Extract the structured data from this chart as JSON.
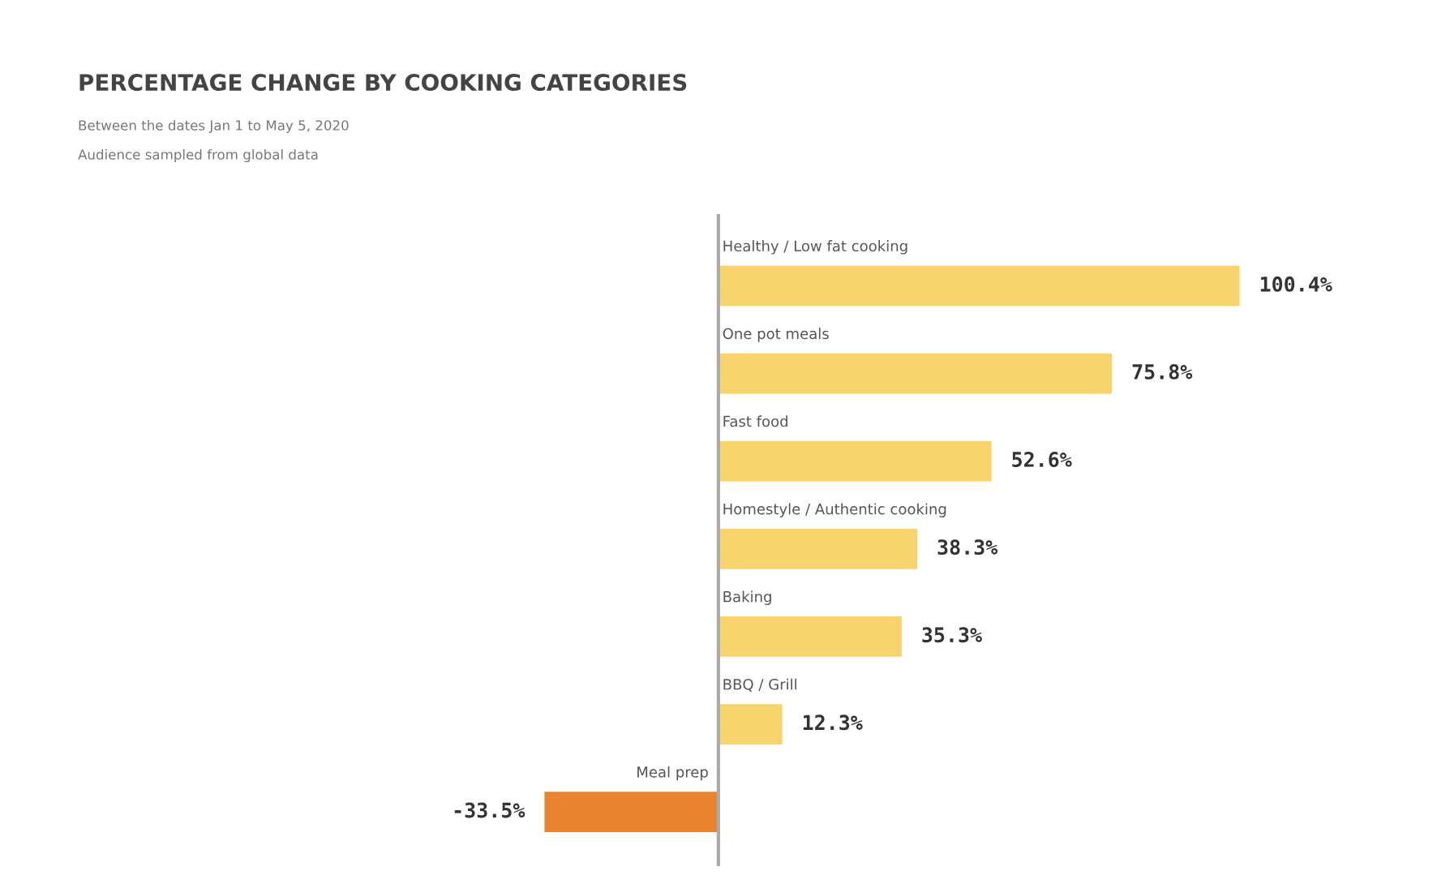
{
  "chart_data": {
    "type": "bar",
    "orientation": "horizontal",
    "title": "PERCENTAGE CHANGE BY COOKING CATEGORIES",
    "subtitle": "Between the dates Jan 1 to May 5, 2020",
    "annotations": [
      "Audience sampled from global data"
    ],
    "categories": [
      "Healthy / Low fat cooking",
      "One pot meals",
      "Fast food",
      "Homestyle / Authentic cooking",
      "Baking",
      "BBQ / Grill",
      "Meal prep"
    ],
    "values": [
      100.4,
      75.8,
      52.6,
      38.3,
      35.3,
      12.3,
      -33.5
    ],
    "colors": [
      "#f6d36d",
      "#f6d36d",
      "#f6d36d",
      "#f6d36d",
      "#f6d36d",
      "#f6d36d",
      "#e8832f"
    ],
    "value_labels": [
      "100.4%",
      "75.8%",
      "52.6%",
      "38.3%",
      "35.3%",
      "12.3%",
      "-33.5%"
    ],
    "data_labels": false
  }
}
